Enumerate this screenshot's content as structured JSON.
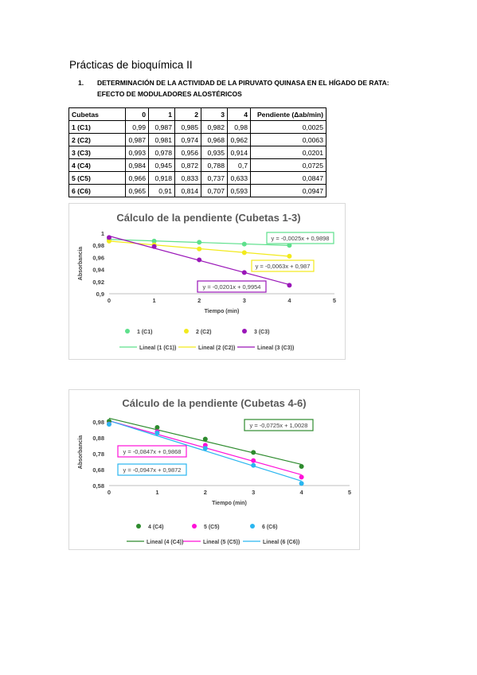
{
  "document": {
    "title": "Prácticas de bioquímica II",
    "section_number": "1.",
    "section_title": "DETERMINACIÓN DE LA ACTIVIDAD DE LA PIRUVATO QUINASA EN EL HÍGADO DE RATA: EFECTO DE MODULADORES ALOSTÉRICOS"
  },
  "table": {
    "headers": [
      "Cubetas",
      "0",
      "1",
      "2",
      "3",
      "4",
      "Pendiente (Δab/min)"
    ],
    "rows": [
      [
        "1 (C1)",
        "0,99",
        "0,987",
        "0,985",
        "0,982",
        "0,98",
        "0,0025"
      ],
      [
        "2 (C2)",
        "0,987",
        "0,981",
        "0,974",
        "0,968",
        "0,962",
        "0,0063"
      ],
      [
        "3 (C3)",
        "0,993",
        "0,978",
        "0,956",
        "0,935",
        "0,914",
        "0,0201"
      ],
      [
        "4 (C4)",
        "0,984",
        "0,945",
        "0,872",
        "0,788",
        "0,7",
        "0,0725"
      ],
      [
        "5 (C5)",
        "0,966",
        "0,918",
        "0,833",
        "0,737",
        "0,633",
        "0,0847"
      ],
      [
        "6 (C6)",
        "0,965",
        "0,91",
        "0,814",
        "0,707",
        "0,593",
        "0,0947"
      ]
    ]
  },
  "chart_data": [
    {
      "type": "scatter",
      "title": "Cálculo de la pendiente (Cubetas 1-3)",
      "xlabel": "Tiempo (min)",
      "ylabel": "Absorbancia",
      "xlim": [
        0,
        5
      ],
      "ylim": [
        0.9,
        1
      ],
      "xticks": [
        "0",
        "1",
        "2",
        "3",
        "4",
        "5"
      ],
      "yticks": [
        "0,9",
        "0,92",
        "0,94",
        "0,96",
        "0,98",
        "1"
      ],
      "grid": false,
      "legend_position": "bottom",
      "series": [
        {
          "name": "1 (C1)",
          "color": "#5ee08c",
          "x": [
            0,
            1,
            2,
            3,
            4
          ],
          "y": [
            0.99,
            0.987,
            0.985,
            0.982,
            0.98
          ],
          "trend_name": "Lineal (1 (C1))",
          "slope": -0.0025,
          "intercept": 0.9898,
          "equation": "y = -0,0025x + 0,9898"
        },
        {
          "name": "2 (C2)",
          "color": "#f2ea1c",
          "x": [
            0,
            1,
            2,
            3,
            4
          ],
          "y": [
            0.987,
            0.981,
            0.974,
            0.968,
            0.962
          ],
          "trend_name": "Lineal (2 (C2))",
          "slope": -0.0063,
          "intercept": 0.987,
          "equation": "y = -0,0063x + 0,987"
        },
        {
          "name": "3 (C3)",
          "color": "#9a16b8",
          "x": [
            0,
            1,
            2,
            3,
            4
          ],
          "y": [
            0.993,
            0.978,
            0.956,
            0.935,
            0.914
          ],
          "trend_name": "Lineal (3 (C3))",
          "slope": -0.0201,
          "intercept": 0.9954,
          "equation": "y = -0,0201x + 0,9954"
        }
      ]
    },
    {
      "type": "scatter",
      "title": "Cálculo de la pendiente (Cubetas 4-6)",
      "xlabel": "Tiempo (min)",
      "ylabel": "Absorbancia",
      "xlim": [
        0,
        5
      ],
      "ylim": [
        0.58,
        1
      ],
      "yticks_values": [
        0.58,
        0.68,
        0.78,
        0.88,
        0.98
      ],
      "xticks": [
        "0",
        "1",
        "2",
        "3",
        "4",
        "5"
      ],
      "yticks": [
        "0,58",
        "0,68",
        "0,78",
        "0,88",
        "0,98"
      ],
      "grid": false,
      "legend_position": "bottom",
      "series": [
        {
          "name": "4 (C4)",
          "color": "#2e8b2e",
          "x": [
            0,
            1,
            2,
            3,
            4
          ],
          "y": [
            0.984,
            0.945,
            0.872,
            0.788,
            0.7
          ],
          "trend_name": "Lineal (4 (C4))",
          "slope": -0.0725,
          "intercept": 1.0028,
          "equation": "y = -0,0725x + 1,0028"
        },
        {
          "name": "5 (C5)",
          "color": "#ff10d8",
          "x": [
            0,
            1,
            2,
            3,
            4
          ],
          "y": [
            0.966,
            0.918,
            0.833,
            0.737,
            0.633
          ],
          "trend_name": "Lineal (5 (C5))",
          "slope": -0.0847,
          "intercept": 0.9868,
          "equation": "y = -0,0847x + 0,9868"
        },
        {
          "name": "6 (C6)",
          "color": "#2ab6f0",
          "x": [
            0,
            1,
            2,
            3,
            4
          ],
          "y": [
            0.965,
            0.91,
            0.814,
            0.707,
            0.593
          ],
          "trend_name": "Lineal (6 (C6))",
          "slope": -0.0947,
          "intercept": 0.9872,
          "equation": "y = -0,0947x + 0,9872"
        }
      ]
    }
  ]
}
